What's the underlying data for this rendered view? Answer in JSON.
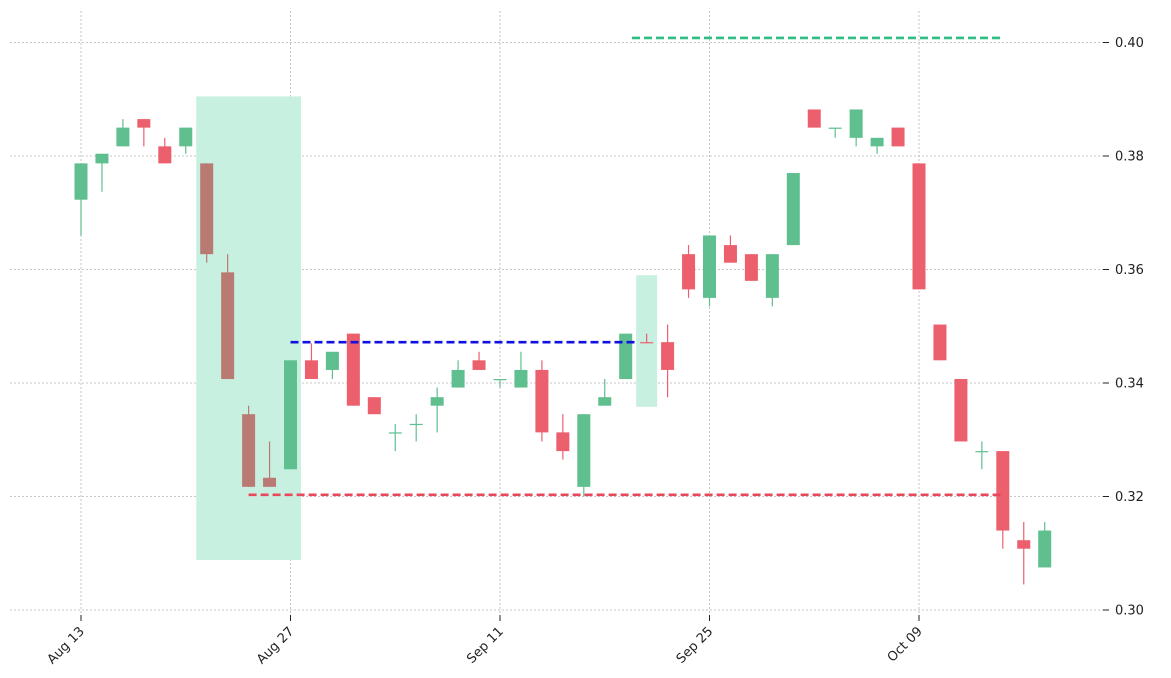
{
  "chart_data": {
    "type": "candlestick",
    "x_tick_labels": [
      "Aug 13",
      "Aug 27",
      "Sep 11",
      "Sep 25",
      "Oct 09"
    ],
    "x_tick_index": [
      0,
      10,
      20,
      30,
      40
    ],
    "y_ticks": [
      "0.30",
      "0.32",
      "0.34",
      "0.36",
      "0.38",
      "0.40"
    ],
    "y_tick_values": [
      0.3,
      0.32,
      0.34,
      0.36,
      0.38,
      0.4
    ],
    "ylim": [
      0.298,
      0.4055
    ],
    "grid": true,
    "colors": {
      "up": "#5fbf8f",
      "down": "#ec5f6d",
      "pattern_fill": "#c8f0e0",
      "pattern_candle": "#b87a72",
      "support_line": "#e8495a",
      "resistance_line": "#2ebd83",
      "breakout_line": "#1111dd"
    },
    "candles": [
      {
        "i": 0,
        "o": 0.3723,
        "h": 0.3787,
        "l": 0.366,
        "c": 0.3787
      },
      {
        "i": 1,
        "o": 0.3787,
        "h": 0.3804,
        "l": 0.3737,
        "c": 0.3804
      },
      {
        "i": 2,
        "o": 0.3817,
        "h": 0.3865,
        "l": 0.3817,
        "c": 0.385
      },
      {
        "i": 3,
        "o": 0.3865,
        "h": 0.3865,
        "l": 0.3817,
        "c": 0.385
      },
      {
        "i": 4,
        "o": 0.3817,
        "h": 0.3832,
        "l": 0.3787,
        "c": 0.3787
      },
      {
        "i": 5,
        "o": 0.3817,
        "h": 0.385,
        "l": 0.3804,
        "c": 0.385
      },
      {
        "i": 6,
        "o": 0.3787,
        "h": 0.3787,
        "l": 0.3612,
        "c": 0.3627
      },
      {
        "i": 7,
        "o": 0.3595,
        "h": 0.3627,
        "l": 0.3407,
        "c": 0.3407
      },
      {
        "i": 8,
        "o": 0.3345,
        "h": 0.336,
        "l": 0.3217,
        "c": 0.3217
      },
      {
        "i": 9,
        "o": 0.3233,
        "h": 0.3297,
        "l": 0.3217,
        "c": 0.3217
      },
      {
        "i": 10,
        "o": 0.3248,
        "h": 0.344,
        "l": 0.3248,
        "c": 0.344
      },
      {
        "i": 11,
        "o": 0.344,
        "h": 0.347,
        "l": 0.3407,
        "c": 0.3407
      },
      {
        "i": 12,
        "o": 0.3423,
        "h": 0.3455,
        "l": 0.3407,
        "c": 0.3455
      },
      {
        "i": 13,
        "o": 0.3487,
        "h": 0.3487,
        "l": 0.336,
        "c": 0.336
      },
      {
        "i": 14,
        "o": 0.3375,
        "h": 0.3375,
        "l": 0.3345,
        "c": 0.3345
      },
      {
        "i": 15,
        "o": 0.3313,
        "h": 0.3328,
        "l": 0.328,
        "c": 0.3313
      },
      {
        "i": 16,
        "o": 0.3328,
        "h": 0.3345,
        "l": 0.3297,
        "c": 0.3328
      },
      {
        "i": 17,
        "o": 0.336,
        "h": 0.3392,
        "l": 0.3313,
        "c": 0.3375
      },
      {
        "i": 18,
        "o": 0.3392,
        "h": 0.344,
        "l": 0.3392,
        "c": 0.3423
      },
      {
        "i": 19,
        "o": 0.344,
        "h": 0.3455,
        "l": 0.3423,
        "c": 0.3423
      },
      {
        "i": 20,
        "o": 0.3407,
        "h": 0.3407,
        "l": 0.3392,
        "c": 0.3407
      },
      {
        "i": 21,
        "o": 0.3392,
        "h": 0.3455,
        "l": 0.3392,
        "c": 0.3423
      },
      {
        "i": 22,
        "o": 0.3423,
        "h": 0.344,
        "l": 0.3297,
        "c": 0.3313
      },
      {
        "i": 23,
        "o": 0.3313,
        "h": 0.3345,
        "l": 0.3265,
        "c": 0.328
      },
      {
        "i": 24,
        "o": 0.3217,
        "h": 0.3345,
        "l": 0.32,
        "c": 0.3345
      },
      {
        "i": 25,
        "o": 0.336,
        "h": 0.3407,
        "l": 0.336,
        "c": 0.3375
      },
      {
        "i": 26,
        "o": 0.3407,
        "h": 0.3487,
        "l": 0.3407,
        "c": 0.3487
      },
      {
        "i": 27,
        "o": 0.3472,
        "h": 0.3487,
        "l": 0.347,
        "c": 0.347
      },
      {
        "i": 28,
        "o": 0.3472,
        "h": 0.3503,
        "l": 0.3375,
        "c": 0.3423
      },
      {
        "i": 29,
        "o": 0.3627,
        "h": 0.3643,
        "l": 0.355,
        "c": 0.3565
      },
      {
        "i": 30,
        "o": 0.355,
        "h": 0.366,
        "l": 0.3535,
        "c": 0.366
      },
      {
        "i": 31,
        "o": 0.3643,
        "h": 0.366,
        "l": 0.3612,
        "c": 0.3612
      },
      {
        "i": 32,
        "o": 0.3627,
        "h": 0.3627,
        "l": 0.358,
        "c": 0.358
      },
      {
        "i": 33,
        "o": 0.355,
        "h": 0.3627,
        "l": 0.3535,
        "c": 0.3627
      },
      {
        "i": 34,
        "o": 0.3643,
        "h": 0.377,
        "l": 0.3643,
        "c": 0.377
      },
      {
        "i": 35,
        "o": 0.3882,
        "h": 0.3882,
        "l": 0.385,
        "c": 0.385
      },
      {
        "i": 36,
        "o": 0.385,
        "h": 0.385,
        "l": 0.3832,
        "c": 0.385
      },
      {
        "i": 37,
        "o": 0.3832,
        "h": 0.3882,
        "l": 0.3817,
        "c": 0.3882
      },
      {
        "i": 38,
        "o": 0.3817,
        "h": 0.3832,
        "l": 0.3804,
        "c": 0.3832
      },
      {
        "i": 39,
        "o": 0.385,
        "h": 0.385,
        "l": 0.3817,
        "c": 0.3817
      },
      {
        "i": 40,
        "o": 0.3787,
        "h": 0.3787,
        "l": 0.3565,
        "c": 0.3565
      },
      {
        "i": 41,
        "o": 0.3503,
        "h": 0.3503,
        "l": 0.344,
        "c": 0.344
      },
      {
        "i": 42,
        "o": 0.3407,
        "h": 0.3407,
        "l": 0.3297,
        "c": 0.3297
      },
      {
        "i": 43,
        "o": 0.328,
        "h": 0.3297,
        "l": 0.3248,
        "c": 0.328
      },
      {
        "i": 44,
        "o": 0.328,
        "h": 0.328,
        "l": 0.3108,
        "c": 0.314
      },
      {
        "i": 45,
        "o": 0.3123,
        "h": 0.3155,
        "l": 0.3045,
        "c": 0.3108
      },
      {
        "i": 46,
        "o": 0.3075,
        "h": 0.3155,
        "l": 0.3075,
        "c": 0.314
      }
    ],
    "pattern_highlight": [
      {
        "i_start": 5.5,
        "i_end": 10.5,
        "y_low": 0.3088,
        "y_high": 0.3905,
        "candles": [
          6,
          7,
          8,
          9
        ]
      },
      {
        "i_start": 26.5,
        "i_end": 27.5,
        "y_low": 0.3358,
        "y_high": 0.359,
        "candles": []
      }
    ],
    "lines": [
      {
        "name": "breakout",
        "i_start": 10,
        "i_end": 26.5,
        "y": 0.3472,
        "color_key": "breakout_line"
      },
      {
        "name": "support",
        "i_start": 8,
        "i_end": 44,
        "y": 0.3203,
        "color_key": "support_line"
      },
      {
        "name": "resistance",
        "i_start": 26.3,
        "i_end": 44,
        "y": 0.4008,
        "color_key": "resistance_line"
      }
    ]
  }
}
